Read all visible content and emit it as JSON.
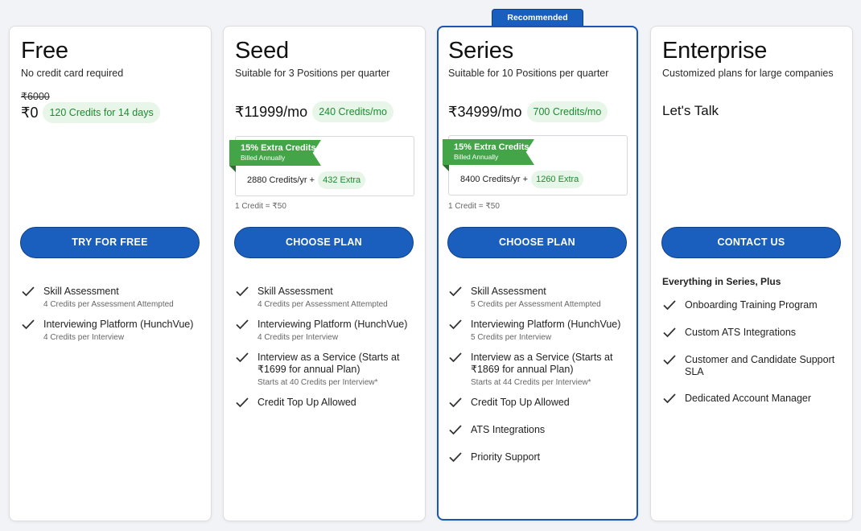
{
  "badge": "Recommended",
  "plans": {
    "free": {
      "name": "Free",
      "subtitle": "No credit card required",
      "old_price": "₹6000",
      "price": "₹0",
      "credits_pill": "120 Credits for 14 days",
      "cta": "TRY FOR FREE",
      "features": [
        {
          "title": "Skill Assessment",
          "sub": "4 Credits per Assessment Attempted"
        },
        {
          "title": "Interviewing Platform (HunchVue)",
          "sub": "4 Credits per Interview"
        }
      ]
    },
    "seed": {
      "name": "Seed",
      "subtitle": "Suitable for 3 Positions per quarter",
      "price": "₹11999/mo",
      "credits_pill": "240 Credits/mo",
      "ribbon_title": "15% Extra Credits",
      "ribbon_sub": "Billed Annually",
      "annual_credits": "2880 Credits/yr +",
      "annual_extra": "432 Extra",
      "credit_note": "1 Credit = ₹50",
      "cta": "CHOOSE PLAN",
      "features": [
        {
          "title": "Skill Assessment",
          "sub": "4 Credits per Assessment Attempted"
        },
        {
          "title": "Interviewing Platform (HunchVue)",
          "sub": "4 Credits per Interview"
        },
        {
          "title": "Interview as a Service (Starts at ₹1699 for annual Plan)",
          "sub": "Starts at 40 Credits per Interview*"
        },
        {
          "title": "Credit Top Up Allowed",
          "sub": ""
        }
      ]
    },
    "series": {
      "name": "Series",
      "subtitle": "Suitable for 10 Positions per quarter",
      "price": "₹34999/mo",
      "credits_pill": "700 Credits/mo",
      "ribbon_title": "15% Extra Credits",
      "ribbon_sub": "Billed Annually",
      "annual_credits": "8400 Credits/yr +",
      "annual_extra": "1260 Extra",
      "credit_note": "1 Credit = ₹50",
      "cta": "CHOOSE PLAN",
      "features": [
        {
          "title": "Skill Assessment",
          "sub": "5 Credits per Assessment Attempted"
        },
        {
          "title": "Interviewing Platform (HunchVue)",
          "sub": "5 Credits per Interview"
        },
        {
          "title": "Interview as a Service (Starts at ₹1869 for annual Plan)",
          "sub": "Starts at 44 Credits per Interview*"
        },
        {
          "title": "Credit Top Up Allowed",
          "sub": ""
        },
        {
          "title": "ATS Integrations",
          "sub": ""
        },
        {
          "title": "Priority Support",
          "sub": ""
        }
      ]
    },
    "enterprise": {
      "name": "Enterprise",
      "subtitle": "Customized plans for large companies",
      "lets_talk": "Let's Talk",
      "cta": "CONTACT US",
      "features_heading": "Everything in Series, Plus",
      "features": [
        {
          "title": "Onboarding Training Program"
        },
        {
          "title": "Custom ATS Integrations"
        },
        {
          "title": "Customer and Candidate Support SLA"
        },
        {
          "title": "Dedicated Account Manager"
        }
      ]
    }
  },
  "colors": {
    "primary": "#1a5fbe",
    "green": "#43a547",
    "pill_bg": "#e8f5e9",
    "pill_text": "#1e8a32"
  },
  "icons": {
    "feature": "check-icon"
  }
}
